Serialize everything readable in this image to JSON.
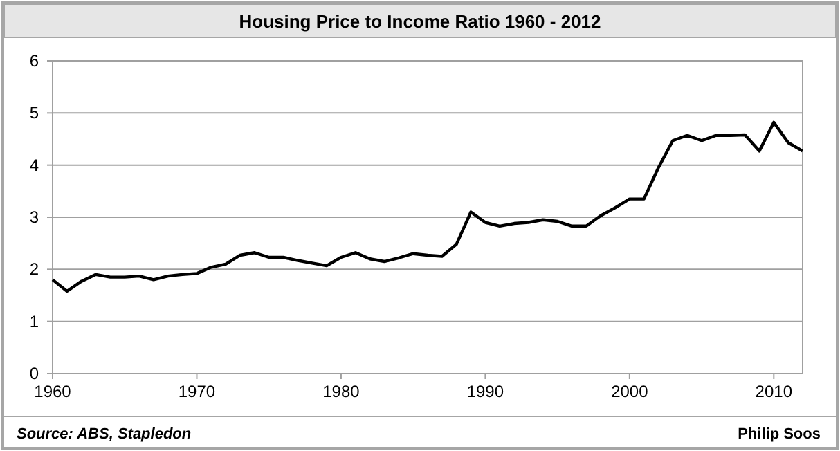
{
  "chart_data": {
    "type": "line",
    "title": "Housing Price to Income Ratio 1960 - 2012",
    "x": [
      1960,
      1961,
      1962,
      1963,
      1964,
      1965,
      1966,
      1967,
      1968,
      1969,
      1970,
      1971,
      1972,
      1973,
      1974,
      1975,
      1976,
      1977,
      1978,
      1979,
      1980,
      1981,
      1982,
      1983,
      1984,
      1985,
      1986,
      1987,
      1988,
      1989,
      1990,
      1991,
      1992,
      1993,
      1994,
      1995,
      1996,
      1997,
      1998,
      1999,
      2000,
      2001,
      2002,
      2003,
      2004,
      2005,
      2006,
      2007,
      2008,
      2009,
      2010,
      2011,
      2012
    ],
    "series": [
      {
        "color": "#000000",
        "values": [
          1.8,
          1.58,
          1.77,
          1.9,
          1.85,
          1.85,
          1.87,
          1.8,
          1.87,
          1.9,
          1.92,
          2.04,
          2.1,
          2.27,
          2.32,
          2.23,
          2.23,
          2.17,
          2.12,
          2.07,
          2.23,
          2.32,
          2.2,
          2.15,
          2.22,
          2.3,
          2.27,
          2.25,
          2.48,
          3.1,
          2.9,
          2.83,
          2.88,
          2.9,
          2.95,
          2.92,
          2.83,
          2.83,
          3.03,
          3.18,
          3.35,
          3.35,
          3.95,
          4.47,
          4.57,
          4.47,
          4.57,
          4.57,
          4.58,
          4.27,
          4.82,
          4.43,
          4.27
        ]
      }
    ],
    "xlim": [
      1960,
      2012
    ],
    "xticks": [
      1960,
      1970,
      1980,
      1990,
      2000,
      2010
    ],
    "ylim": [
      0,
      6
    ],
    "yticks": [
      0,
      1,
      2,
      3,
      4,
      5,
      6
    ],
    "grid": "y",
    "annotations": [
      "Source: ABS, Stapledon",
      "Philip Soos"
    ]
  }
}
